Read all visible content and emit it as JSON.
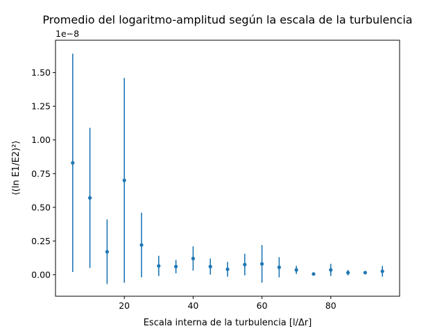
{
  "chart_data": {
    "type": "scatter",
    "title": "Promedio del logaritmo-amplitud según la escala de la turbulencia",
    "xlabel": "Escala interna de la turbulencia [l/Δr]",
    "ylabel": "⟨(ln E1/E2)²⟩",
    "y_offset_text": "1e−8",
    "xlim": [
      0,
      100
    ],
    "ylim": [
      -0.16,
      1.74
    ],
    "y_scale_multiplier": 1e-08,
    "x_ticks": [
      20,
      40,
      60,
      80
    ],
    "y_ticks": [
      0.0,
      0.25,
      0.5,
      0.75,
      1.0,
      1.25,
      1.5
    ],
    "y_tick_labels": [
      "0.00",
      "0.25",
      "0.50",
      "0.75",
      "1.00",
      "1.25",
      "1.50"
    ],
    "grid": false,
    "color": "#1f77b4",
    "series": [
      {
        "x": [
          5,
          10,
          15,
          20,
          25,
          30,
          35,
          40,
          45,
          50,
          55,
          60,
          65,
          70,
          75,
          80,
          85,
          90,
          95
        ],
        "y": [
          0.83,
          0.57,
          0.17,
          0.7,
          0.22,
          0.065,
          0.06,
          0.12,
          0.06,
          0.04,
          0.075,
          0.08,
          0.055,
          0.035,
          0.005,
          0.035,
          0.015,
          0.015,
          0.025
        ],
        "yerr": [
          0.81,
          0.52,
          0.24,
          0.76,
          0.24,
          0.075,
          0.05,
          0.09,
          0.06,
          0.055,
          0.08,
          0.14,
          0.075,
          0.03,
          0.005,
          0.045,
          0.02,
          0.01,
          0.04
        ]
      }
    ]
  }
}
